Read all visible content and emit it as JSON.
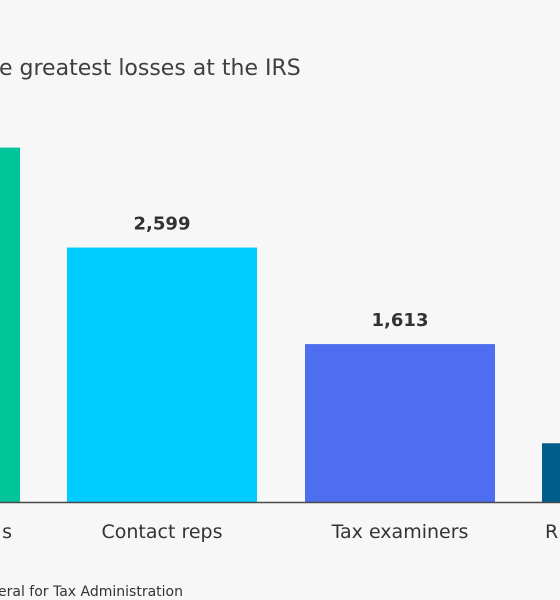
{
  "header": {
    "title": "e greatest losses at the IRS"
  },
  "footer": {
    "source": "eral for Tax Administration"
  },
  "chart_data": {
    "type": "bar",
    "title": "e greatest losses at the IRS",
    "categories": [
      "s",
      "Contact reps",
      "Tax examiners",
      "R"
    ],
    "values": [
      3620,
      2599,
      1613,
      600
    ],
    "data_labels": [
      "",
      "2,599",
      "1,613",
      ""
    ],
    "colors": [
      "#00c49a",
      "#00ccff",
      "#4d6ef0",
      "#005e8c"
    ],
    "ylim": [
      0,
      4200
    ],
    "grid": false,
    "xlabel": "",
    "ylabel": ""
  }
}
